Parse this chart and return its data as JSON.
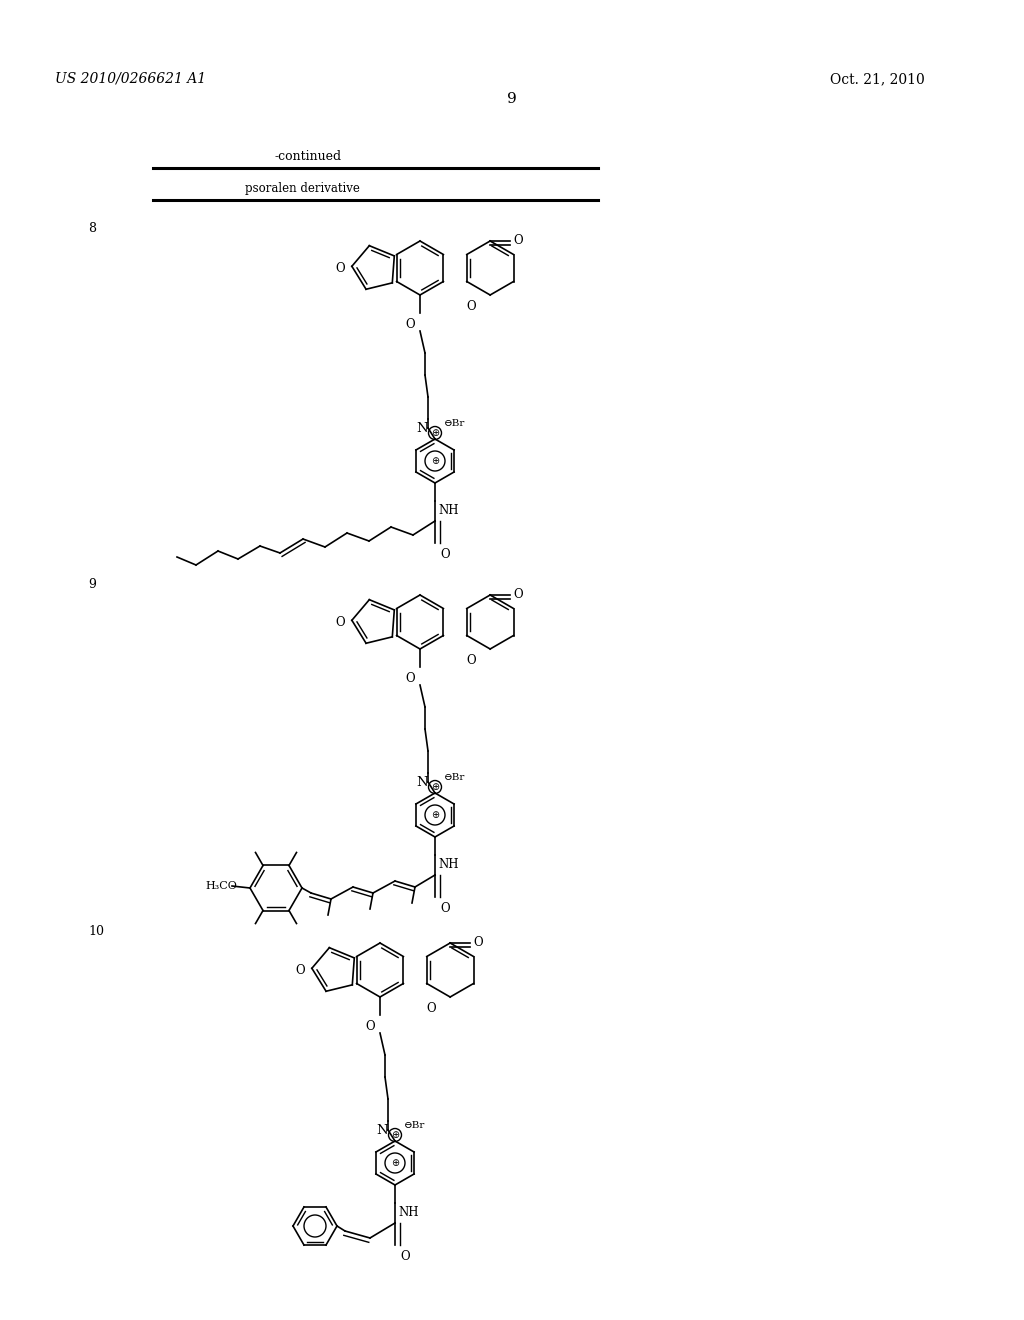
{
  "patent_number": "US 2010/0266621 A1",
  "date": "Oct. 21, 2010",
  "page_number": "9",
  "continued_text": "-continued",
  "table_header": "psoralen derivative",
  "compound_labels": [
    "8",
    "9",
    "10"
  ],
  "background_color": "#ffffff"
}
